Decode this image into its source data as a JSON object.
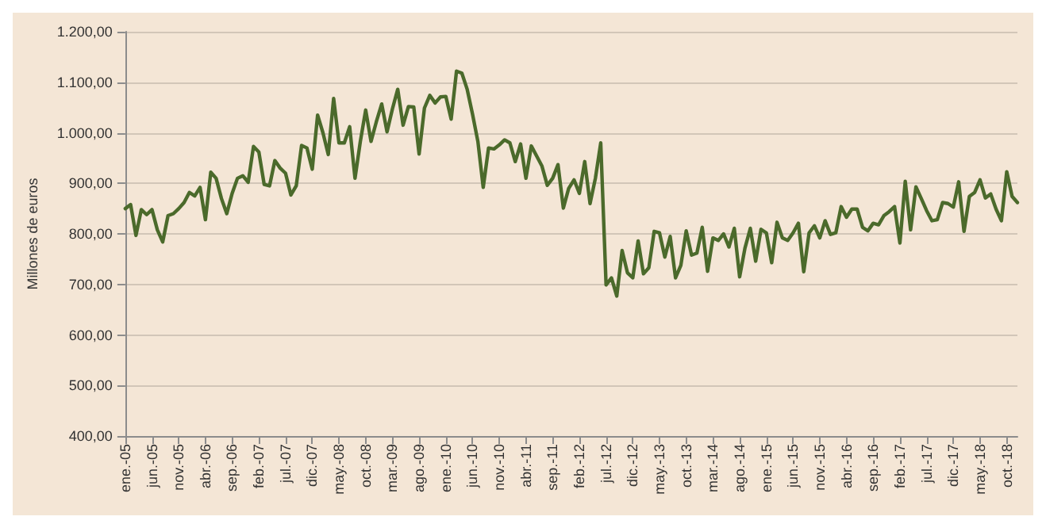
{
  "chart_data": {
    "type": "line",
    "ylabel": "Millones de euros",
    "categories": [
      "ene.-05",
      null,
      null,
      null,
      null,
      "jun.-05",
      null,
      null,
      null,
      null,
      "nov.-05",
      null,
      null,
      null,
      null,
      "abr.-06",
      null,
      null,
      null,
      null,
      "sep.-06",
      null,
      null,
      null,
      null,
      "feb.-07",
      null,
      null,
      null,
      null,
      "jul.-07",
      null,
      null,
      null,
      null,
      "dic.-07",
      null,
      null,
      null,
      null,
      "may.-08",
      null,
      null,
      null,
      null,
      "oct.-08",
      null,
      null,
      null,
      null,
      "mar.-09",
      null,
      null,
      null,
      null,
      "ago.-09",
      null,
      null,
      null,
      null,
      "ene.-10",
      null,
      null,
      null,
      null,
      "jun.-10",
      null,
      null,
      null,
      null,
      "nov.-10",
      null,
      null,
      null,
      null,
      "abr.-11",
      null,
      null,
      null,
      null,
      "sep.-11",
      null,
      null,
      null,
      null,
      "feb.-12",
      null,
      null,
      null,
      null,
      "jul.-12",
      null,
      null,
      null,
      null,
      "dic.-12",
      null,
      null,
      null,
      null,
      "may.-13",
      null,
      null,
      null,
      null,
      "oct.-13",
      null,
      null,
      null,
      null,
      "mar.-14",
      null,
      null,
      null,
      null,
      "ago.-14",
      null,
      null,
      null,
      null,
      "ene.-15",
      null,
      null,
      null,
      null,
      "jun.-15",
      null,
      null,
      null,
      null,
      "nov.-15",
      null,
      null,
      null,
      null,
      "abr.-16",
      null,
      null,
      null,
      null,
      "sep.-16",
      null,
      null,
      null,
      null,
      "feb.-17",
      null,
      null,
      null,
      null,
      "jul.-17",
      null,
      null,
      null,
      null,
      "dic.-17",
      null,
      null,
      null,
      null,
      "may.-18",
      null,
      null,
      null,
      null,
      "oct.-18",
      null,
      null
    ],
    "series": [
      {
        "color": "#4b6a2b",
        "values": [
          850,
          858,
          797,
          848,
          838,
          848,
          808,
          784,
          836,
          840,
          850,
          862,
          882,
          875,
          892,
          828,
          922,
          910,
          870,
          840,
          880,
          910,
          915,
          902,
          973,
          962,
          898,
          895,
          945,
          930,
          920,
          877,
          895,
          975,
          970,
          928,
          1035,
          1000,
          957,
          1068,
          980,
          980,
          1012,
          910,
          983,
          1045,
          983,
          1022,
          1057,
          1002,
          1047,
          1086,
          1015,
          1052,
          1051,
          958,
          1049,
          1074,
          1059,
          1071,
          1072,
          1027,
          1122,
          1118,
          1086,
          1037,
          983,
          892,
          970,
          968,
          976,
          986,
          980,
          943,
          978,
          910,
          974,
          954,
          934,
          896,
          910,
          937,
          851,
          890,
          907,
          880,
          943,
          860,
          910,
          980,
          699,
          713,
          677,
          767,
          723,
          713,
          786,
          721,
          733,
          805,
          802,
          754,
          795,
          713,
          738,
          806,
          758,
          762,
          813,
          726,
          792,
          787,
          800,
          774,
          811,
          715,
          772,
          811,
          746,
          809,
          802,
          743,
          823,
          792,
          787,
          802,
          821,
          725,
          802,
          816,
          792,
          826,
          799,
          802,
          854,
          833,
          849,
          849,
          813,
          806,
          821,
          818,
          836,
          844,
          854,
          782,
          904,
          808,
          893,
          870,
          846,
          826,
          828,
          862,
          860,
          853,
          903,
          805,
          874,
          882,
          907,
          871,
          879,
          849,
          826,
          923,
          874,
          862
        ]
      }
    ],
    "ylim": [
      400,
      1200
    ],
    "yticks": [
      {
        "value": 400,
        "label": "400,00"
      },
      {
        "value": 500,
        "label": "500,00"
      },
      {
        "value": 600,
        "label": "600,00"
      },
      {
        "value": 700,
        "label": "700,00"
      },
      {
        "value": 800,
        "label": "800,00"
      },
      {
        "value": 900,
        "label": "900,00"
      },
      {
        "value": 1000,
        "label": "1.000,00"
      },
      {
        "value": 1100,
        "label": "1.100,00"
      },
      {
        "value": 1200,
        "label": "1.200,00"
      }
    ],
    "grid": "y",
    "marker": "none",
    "line_style": "solid"
  }
}
